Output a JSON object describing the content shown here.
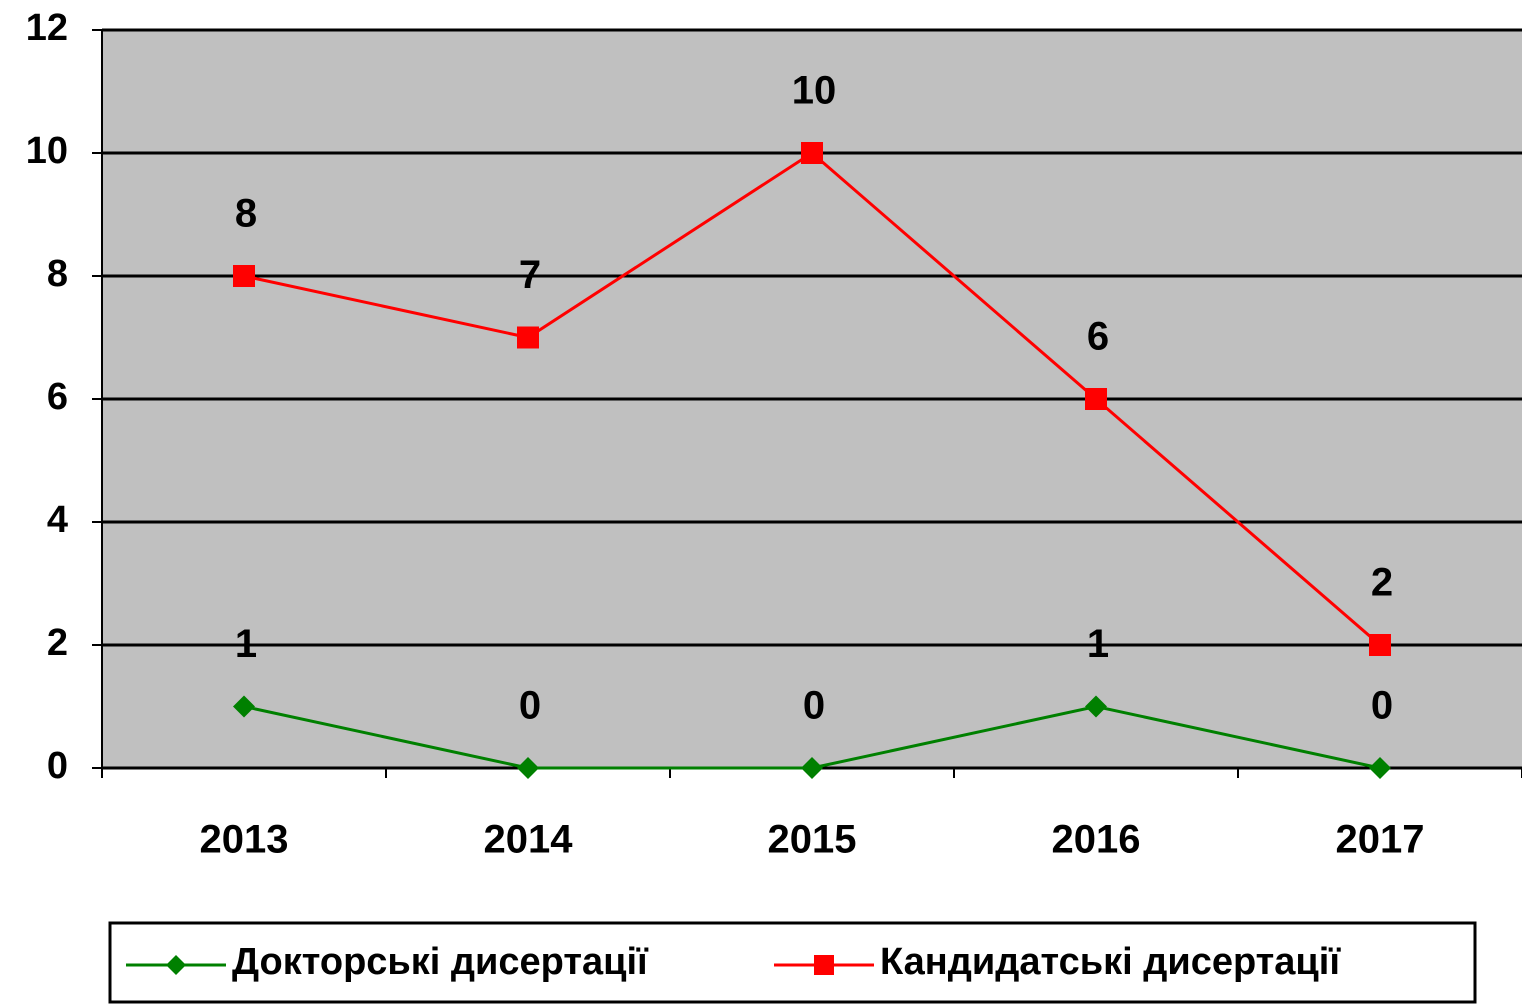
{
  "chart_data": {
    "type": "line",
    "categories": [
      "2013",
      "2014",
      "2015",
      "2016",
      "2017"
    ],
    "series": [
      {
        "name": "Докторські дисертації",
        "color": "#008000",
        "marker": "diamond",
        "values": [
          1,
          0,
          0,
          1,
          0
        ]
      },
      {
        "name": "Кандидатські дисертації",
        "color": "#ff0000",
        "marker": "square",
        "values": [
          8,
          7,
          10,
          6,
          2
        ]
      }
    ],
    "ylim": [
      0,
      12
    ],
    "yticks": [
      0,
      2,
      4,
      6,
      8,
      10,
      12
    ],
    "grid": true,
    "legend": "bottom"
  }
}
